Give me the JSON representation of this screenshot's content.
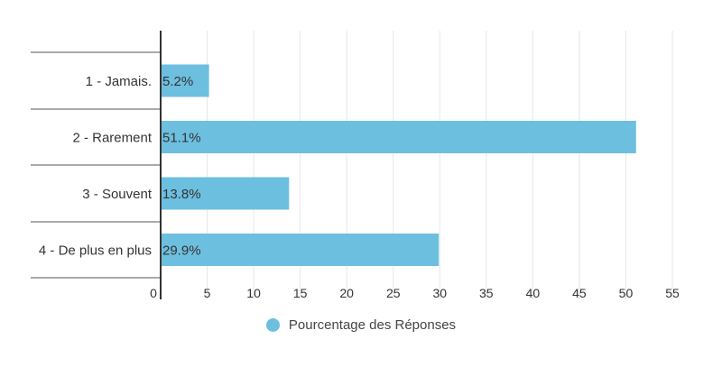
{
  "chart_data": {
    "type": "bar",
    "orientation": "horizontal",
    "categories": [
      "1 - Jamais.",
      "2 - Rarement",
      "3 - Souvent",
      "4 - De plus en plus"
    ],
    "series": [
      {
        "name": "Pourcentage des Réponses",
        "values": [
          5.2,
          51.1,
          13.8,
          29.9
        ],
        "value_labels": [
          "5.2%",
          "51.1%",
          "13.8%",
          "29.9%"
        ]
      }
    ],
    "x_ticks": [
      0,
      5,
      10,
      15,
      20,
      25,
      30,
      35,
      40,
      45,
      50,
      55
    ],
    "xlim": [
      0,
      55
    ],
    "grid": true,
    "legend_position": "bottom",
    "bar_color": "#6dbfdf"
  }
}
